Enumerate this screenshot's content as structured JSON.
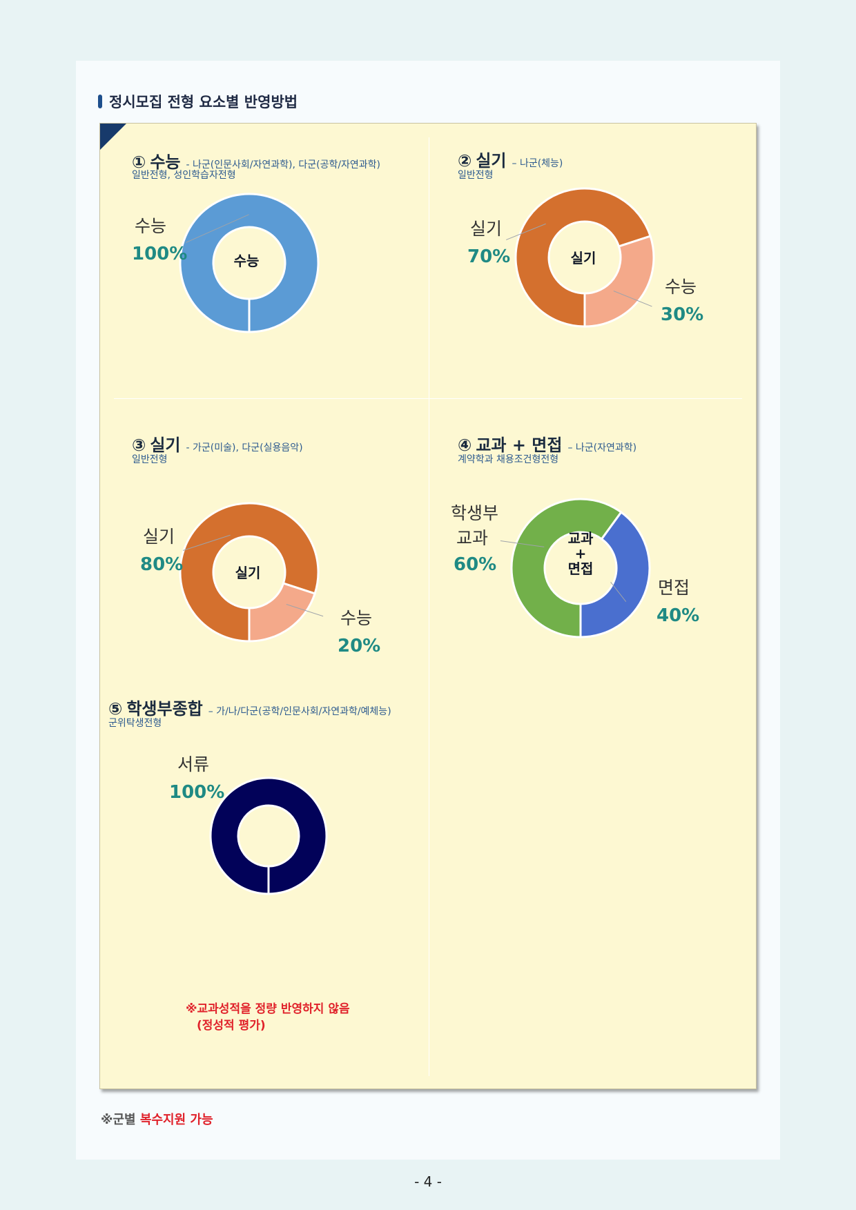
{
  "page": {
    "heading": "정시모집 전형 요소별 반영방법",
    "footnote_prefix": "※군별 ",
    "footnote_highlight": "복수지원 가능",
    "page_number": "- 4 -"
  },
  "colors": {
    "suneung_blue": "#5b9bd5",
    "silgi_orange": "#d4702e",
    "salmon": "#f4a98a",
    "green": "#72b04a",
    "interview_blue": "#4a6fcf",
    "navy": "#020259",
    "percent_teal": "#1f8a84",
    "note_red": "#e0212a"
  },
  "sections": [
    {
      "num": "①",
      "name": "수능",
      "desc": "- 나군(인문사회/자연과학), 다군(공학/자연과학)",
      "sub": "일반전형, 성인학습자전형",
      "center": "수능",
      "slices": [
        {
          "label": "수능",
          "value": "100%"
        }
      ]
    },
    {
      "num": "②",
      "name": "실기",
      "desc": "– 나군(체능)",
      "sub": "일반전형",
      "center": "실기",
      "slices": [
        {
          "label": "실기",
          "value": "70%"
        },
        {
          "label": "수능",
          "value": "30%"
        }
      ]
    },
    {
      "num": "③",
      "name": "실기",
      "desc": "- 가군(미술), 다군(실용음악)",
      "sub": "일반전형",
      "center": "실기",
      "slices": [
        {
          "label": "실기",
          "value": "80%"
        },
        {
          "label": "수능",
          "value": "20%"
        }
      ]
    },
    {
      "num": "④",
      "name": "교과 + 면접",
      "desc": "– 나군(자연과학)",
      "sub": "계약학과 채용조건형전형",
      "center_lines": [
        "교과",
        "+",
        "면접"
      ],
      "slices": [
        {
          "label_lines": [
            "학생부",
            "교과"
          ],
          "value": "60%"
        },
        {
          "label": "면접",
          "value": "40%"
        }
      ]
    },
    {
      "num": "⑤",
      "name": "학생부종합",
      "desc": "– 가/나/다군(공학/인문사회/자연과학/예체능)",
      "sub": "군위탁생전형",
      "slices": [
        {
          "label": "서류",
          "value": "100%"
        }
      ],
      "note_lines": [
        "※교과성적을 정량 반영하지 않음",
        "(정성적 평가)"
      ]
    }
  ],
  "chart_data": [
    {
      "type": "pie",
      "donut": true,
      "categories": [
        "수능"
      ],
      "values": [
        100
      ]
    },
    {
      "type": "pie",
      "donut": true,
      "categories": [
        "실기",
        "수능"
      ],
      "values": [
        70,
        30
      ]
    },
    {
      "type": "pie",
      "donut": true,
      "categories": [
        "실기",
        "수능"
      ],
      "values": [
        80,
        20
      ]
    },
    {
      "type": "pie",
      "donut": true,
      "categories": [
        "학생부 교과",
        "면접"
      ],
      "values": [
        60,
        40
      ]
    },
    {
      "type": "pie",
      "donut": true,
      "categories": [
        "서류"
      ],
      "values": [
        100
      ]
    }
  ]
}
